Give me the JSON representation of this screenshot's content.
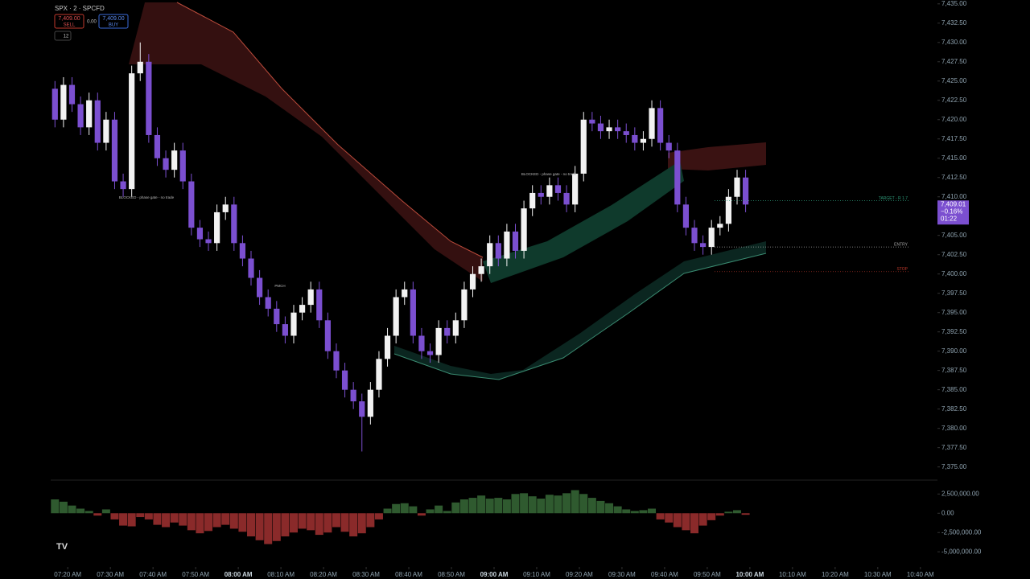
{
  "header": {
    "symbol": "SPX · 2 · SPCFD",
    "sell_price": "7,409.00",
    "sell_label": "SELL",
    "spread": "0.00",
    "buy_price": "7,409.00",
    "buy_label": "BUY",
    "indicator_count": "12"
  },
  "chart_data": [
    {
      "type": "candlestick",
      "open": [
        7424,
        7420,
        7424.5,
        7422,
        7419,
        7422.5,
        7417,
        7420,
        7412,
        7411,
        7426,
        7427.5,
        7418,
        7415,
        7413.5,
        7416,
        7412,
        7406,
        7404.5,
        7404,
        7408,
        7409,
        7404,
        7402,
        7399.5,
        7397,
        7395.5,
        7393.5,
        7392,
        7395,
        7396,
        7398,
        7394,
        7390,
        7387.5,
        7385,
        7383.5,
        7381.5,
        7385,
        7389,
        7392,
        7397,
        7398,
        7392,
        7390,
        7389.5,
        7393,
        7392,
        7394,
        7398,
        7400,
        7401,
        7404,
        7402,
        7405.5,
        7403,
        7408.5,
        7410.5,
        7410,
        7411.5,
        7410.5,
        7409,
        7413,
        7420,
        7419.5,
        7418.5,
        7419,
        7418.5,
        7418,
        7417,
        7417.5,
        7421.5,
        7417,
        7416,
        7409,
        7406,
        7404,
        7403.5,
        7406,
        7406.5,
        7410,
        7412.5
      ],
      "high": [
        7425,
        7425.5,
        7425.5,
        7423,
        7423.5,
        7423.5,
        7421,
        7421,
        7413,
        7427,
        7430,
        7428.5,
        7419,
        7416,
        7417,
        7417,
        7413,
        7407,
        7405.5,
        7409,
        7410,
        7410,
        7405,
        7403,
        7400.5,
        7398,
        7396.5,
        7394.5,
        7396,
        7397,
        7399,
        7399,
        7395,
        7391,
        7388.5,
        7386,
        7384.5,
        7386,
        7390,
        7393,
        7398,
        7399,
        7399,
        7393,
        7391,
        7394,
        7394,
        7395,
        7399,
        7401,
        7402,
        7405,
        7405,
        7406.5,
        7406.5,
        7409.5,
        7411.5,
        7411.5,
        7412.5,
        7412.5,
        7411.5,
        7414,
        7421,
        7421,
        7420.5,
        7420,
        7420,
        7419.5,
        7419,
        7418.5,
        7422.5,
        7422.5,
        7418,
        7417,
        7410,
        7407,
        7405,
        7407,
        7407.5,
        7411,
        7413.5,
        7413.5
      ],
      "low": [
        7419,
        7419,
        7421,
        7418,
        7418,
        7416,
        7416,
        7411,
        7410,
        7410,
        7425,
        7417,
        7414,
        7412.5,
        7412.5,
        7411,
        7405,
        7403.5,
        7403,
        7403,
        7407,
        7403,
        7401,
        7398.5,
        7396,
        7394.5,
        7392.5,
        7391,
        7391,
        7394,
        7395,
        7393,
        7389,
        7386.5,
        7384,
        7382.5,
        7377,
        7380.5,
        7384,
        7388,
        7391,
        7396,
        7391,
        7389,
        7388.5,
        7388.5,
        7391,
        7391,
        7393,
        7397,
        7399,
        7400,
        7401,
        7401,
        7402,
        7402,
        7407.5,
        7409,
        7409,
        7409.5,
        7408,
        7408,
        7412,
        7418.5,
        7417.5,
        7417.5,
        7417.5,
        7417,
        7416,
        7416,
        7416.5,
        7416,
        7415,
        7408,
        7405,
        7403,
        7402.5,
        7402.5,
        7405,
        7405.5,
        7409,
        7408
      ],
      "close": [
        7420,
        7424.5,
        7422,
        7419,
        7422.5,
        7417,
        7420,
        7412,
        7411,
        7426,
        7427.5,
        7418,
        7415,
        7413.5,
        7416,
        7412,
        7406,
        7404.5,
        7404,
        7408,
        7409,
        7404,
        7402,
        7399.5,
        7397,
        7395.5,
        7393.5,
        7392,
        7395,
        7396,
        7398,
        7394,
        7390,
        7387.5,
        7385,
        7383.5,
        7381.5,
        7385,
        7389,
        7392,
        7397,
        7398,
        7392,
        7390,
        7389.5,
        7393,
        7392,
        7394,
        7398,
        7400,
        7401,
        7404,
        7402,
        7405.5,
        7403,
        7408.5,
        7410.5,
        7410,
        7411.5,
        7410.5,
        7409,
        7413,
        7420,
        7419.5,
        7418.5,
        7419,
        7418.5,
        7418,
        7417,
        7417.5,
        7421.5,
        7417,
        7416,
        7409,
        7406,
        7404,
        7403.5,
        7406,
        7406.5,
        7410,
        7412.5,
        7409
      ],
      "up_color": "#f2f2f2",
      "down_color": "#7b4fd0",
      "xlim": [
        -0.5,
        103.5
      ],
      "xticks": [
        {
          "value": 1.5,
          "label": "07:20 AM"
        },
        {
          "value": 6.5,
          "label": "07:30 AM"
        },
        {
          "value": 11.5,
          "label": "07:40 AM"
        },
        {
          "value": 16.5,
          "label": "07:50 AM"
        },
        {
          "value": 21.5,
          "label": "08:00 AM"
        },
        {
          "value": 26.5,
          "label": "08:10 AM"
        },
        {
          "value": 31.5,
          "label": "08:20 AM"
        },
        {
          "value": 36.5,
          "label": "08:30 AM"
        },
        {
          "value": 41.5,
          "label": "08:40 AM"
        },
        {
          "value": 46.5,
          "label": "08:50 AM"
        },
        {
          "value": 51.5,
          "label": "09:00 AM"
        },
        {
          "value": 56.5,
          "label": "09:10 AM"
        },
        {
          "value": 61.5,
          "label": "09:20 AM"
        },
        {
          "value": 66.5,
          "label": "09:30 AM"
        },
        {
          "value": 71.5,
          "label": "09:40 AM"
        },
        {
          "value": 76.5,
          "label": "09:50 AM"
        },
        {
          "value": 81.5,
          "label": "10:00 AM"
        },
        {
          "value": 86.5,
          "label": "10:10 AM"
        },
        {
          "value": 91.5,
          "label": "10:20 AM"
        },
        {
          "value": 96.5,
          "label": "10:30 AM"
        },
        {
          "value": 101.5,
          "label": "10:40 AM"
        }
      ],
      "ylim": [
        7373.4,
        7435.5
      ],
      "yticks": [
        {
          "value": 7435,
          "label": "7,435.00"
        },
        {
          "value": 7432.5,
          "label": "7,432.50"
        },
        {
          "value": 7430,
          "label": "7,430.00"
        },
        {
          "value": 7427.5,
          "label": "7,427.50"
        },
        {
          "value": 7425,
          "label": "7,425.00"
        },
        {
          "value": 7422.5,
          "label": "7,422.50"
        },
        {
          "value": 7420,
          "label": "7,420.00"
        },
        {
          "value": 7417.5,
          "label": "7,417.50"
        },
        {
          "value": 7415,
          "label": "7,415.00"
        },
        {
          "value": 7412.5,
          "label": "7,412.50"
        },
        {
          "value": 7410,
          "label": "7,410.00"
        },
        {
          "value": 7407.5,
          "label": "7,407.50"
        },
        {
          "value": 7405,
          "label": "7,405.00"
        },
        {
          "value": 7402.5,
          "label": "7,402.50"
        },
        {
          "value": 7400,
          "label": "7,400.00"
        },
        {
          "value": 7397.5,
          "label": "7,397.50"
        },
        {
          "value": 7395,
          "label": "7,395.00"
        },
        {
          "value": 7392.5,
          "label": "7,392.50"
        },
        {
          "value": 7390,
          "label": "7,390.00"
        },
        {
          "value": 7387.5,
          "label": "7,387.50"
        },
        {
          "value": 7385,
          "label": "7,385.00"
        },
        {
          "value": 7382.5,
          "label": "7,382.50"
        },
        {
          "value": 7380,
          "label": "7,380.00"
        },
        {
          "value": 7377.5,
          "label": "7,377.50"
        },
        {
          "value": 7375,
          "label": "7,375.00"
        }
      ],
      "last_price": {
        "value": 7409.01,
        "label": "7,409.01",
        "change": "−0.16%",
        "countdown": "01:22",
        "color": "#7b4fd0"
      },
      "annotations": [
        {
          "text": "TARGET - R 1.7",
          "value": 7409.5,
          "color": "#2e9b7a"
        },
        {
          "text": "ENTRY",
          "value": 7403.5,
          "color": "#aaaaaa"
        },
        {
          "text": "STOP",
          "value": 7400.3,
          "color": "#c0392b"
        }
      ],
      "notes": [
        "BLOCKED - phase gate - no trade",
        "BLOCKED - phase gate - no trade",
        "PMCH"
      ]
    },
    {
      "type": "bar",
      "values": [
        1800000,
        1500000,
        1000000,
        600000,
        300000,
        -300000,
        500000,
        -800000,
        -1600000,
        -1700000,
        -500000,
        -800000,
        -1500000,
        -1800000,
        -1200000,
        -1600000,
        -2200000,
        -2600000,
        -2300000,
        -1800000,
        -1500000,
        -2000000,
        -2400000,
        -3000000,
        -3500000,
        -4000000,
        -3600000,
        -3000000,
        -2500000,
        -2000000,
        -2200000,
        -2800000,
        -2500000,
        -1800000,
        -2400000,
        -3000000,
        -2600000,
        -1800000,
        -800000,
        600000,
        1200000,
        1300000,
        900000,
        -300000,
        500000,
        1000000,
        300000,
        1400000,
        1800000,
        2000000,
        2300000,
        1900000,
        2000000,
        1800000,
        2500000,
        2600000,
        2200000,
        1900000,
        2400000,
        2300000,
        2600000,
        3000000,
        2500000,
        2000000,
        1600000,
        1300000,
        900000,
        500000,
        300000,
        400000,
        600000,
        -800000,
        -1200000,
        -1800000,
        -2200000,
        -2600000,
        -1600000,
        -900000,
        -300000,
        200000,
        400000,
        -200000
      ],
      "pos_color": "#2f5a2f",
      "neg_color": "#8a2a2a",
      "ylim": [
        -5400000,
        4200000
      ],
      "yticks": [
        {
          "value": 2500000,
          "label": "2,500,000.00"
        },
        {
          "value": 0,
          "label": "0.00"
        },
        {
          "value": -2500000,
          "label": "-2,500,000.00"
        },
        {
          "value": -5000000,
          "label": "-5,000,000.00"
        }
      ]
    }
  ]
}
